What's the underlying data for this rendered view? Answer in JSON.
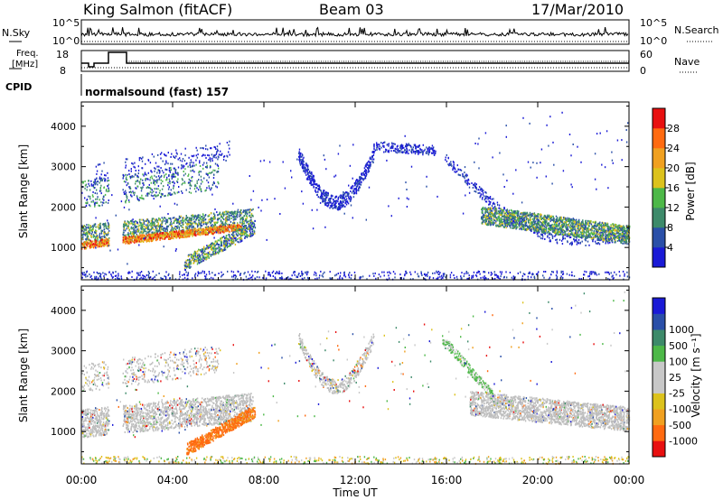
{
  "header": {
    "station": "King Salmon (fitACF)",
    "beam": "Beam 03",
    "date": "17/Mar/2010"
  },
  "panels": {
    "nsky_label": "N.Sky",
    "nsky_ticks": [
      "10^5",
      "10^0"
    ],
    "nsearch_label": "N.Search",
    "freq_label_1": "Freq.",
    "freq_label_2": "[MHz]",
    "freq_ticks": [
      "18",
      "8"
    ],
    "nave_label": "Nave",
    "nave_ticks": [
      "60",
      "0"
    ],
    "cpid_label": "CPID",
    "cpid_value": "normalsound (fast) 157"
  },
  "colors": {
    "power": [
      "#1a1ad6",
      "#2a4fa8",
      "#3d8a6a",
      "#4db848",
      "#dcc21c",
      "#f0a020",
      "#ff6a10",
      "#e81010"
    ],
    "velocity": [
      "#e81010",
      "#ff6a10",
      "#f0a020",
      "#dcc21c",
      "#c8c8c8",
      "#c8c8c8",
      "#4db848",
      "#3d8a6a",
      "#2a4fa8",
      "#1a1ad6"
    ],
    "ground_scatter": "#bebebe"
  },
  "chart_data": [
    {
      "type": "heatmap",
      "name": "power",
      "ylabel": "Slant Range [km]",
      "ylim": [
        200,
        4600
      ],
      "yticks": [
        "1000",
        "2000",
        "3000",
        "4000"
      ],
      "xlim_hours": [
        0,
        24
      ],
      "colorbar_label": "Power [dB]",
      "colorbar_ticks": [
        "4",
        "8",
        "12",
        "16",
        "20",
        "24",
        "28"
      ],
      "colorbar_range": [
        0,
        32
      ]
    },
    {
      "type": "heatmap",
      "name": "velocity",
      "ylabel": "Slant Range [km]",
      "ylim": [
        200,
        4600
      ],
      "yticks": [
        "1000",
        "2000",
        "3000",
        "4000"
      ],
      "xlim_hours": [
        0,
        24
      ],
      "colorbar_label": "Velocity [m s⁻¹]",
      "colorbar_ticks": [
        "-1000",
        "-500",
        "-100",
        "-25",
        "25",
        "100",
        "500",
        "1000"
      ]
    }
  ],
  "xaxis": {
    "label": "Time UT",
    "ticks": [
      "00:00",
      "04:00",
      "08:00",
      "12:00",
      "16:00",
      "20:00",
      "00:00"
    ]
  }
}
